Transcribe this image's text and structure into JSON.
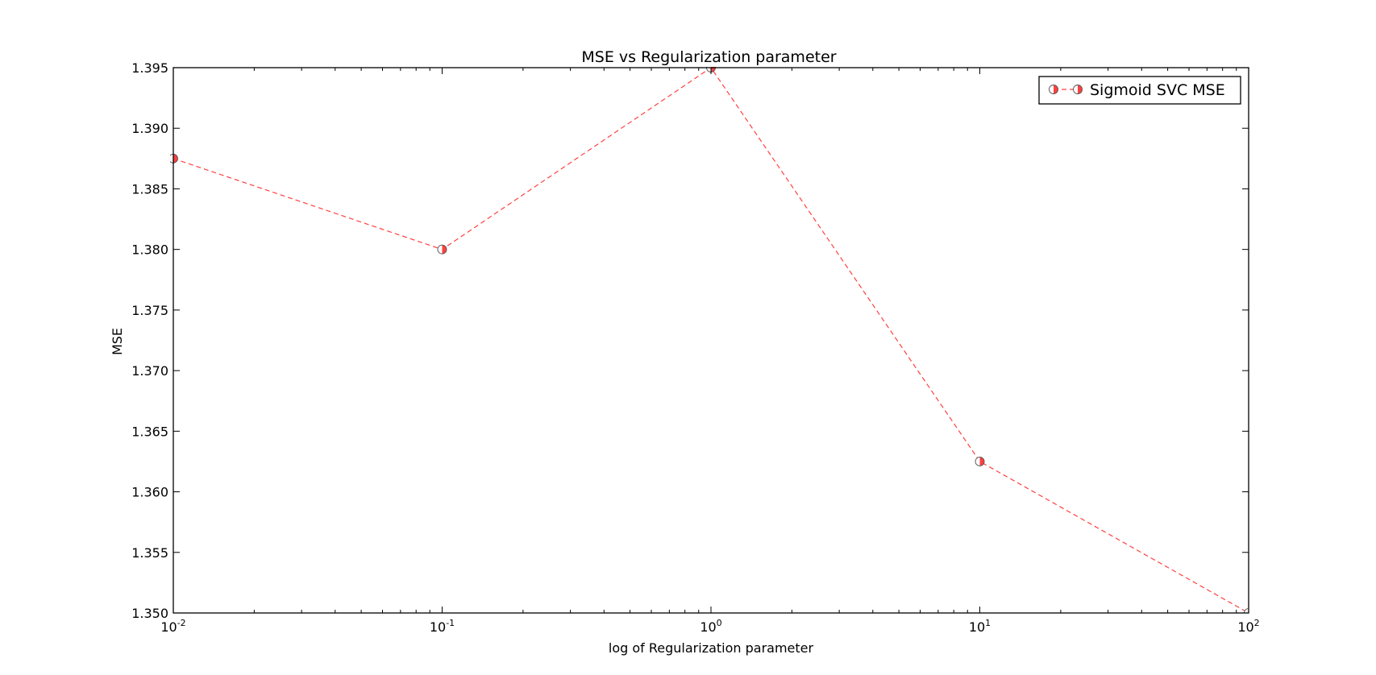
{
  "chart_data": {
    "type": "line",
    "title": "MSE vs Regularization parameter",
    "xlabel": "log of Regularization parameter",
    "ylabel": "MSE",
    "xscale": "log",
    "xlim": [
      0.01,
      100
    ],
    "ylim": [
      1.35,
      1.395
    ],
    "x_ticks": [
      {
        "value": 0.01,
        "base": "10",
        "exp": "-2"
      },
      {
        "value": 0.1,
        "base": "10",
        "exp": "-1"
      },
      {
        "value": 1,
        "base": "10",
        "exp": "0"
      },
      {
        "value": 10,
        "base": "10",
        "exp": "1"
      },
      {
        "value": 100,
        "base": "10",
        "exp": "2"
      }
    ],
    "y_ticks": [
      {
        "value": 1.35,
        "label": "1.350"
      },
      {
        "value": 1.355,
        "label": "1.355"
      },
      {
        "value": 1.36,
        "label": "1.360"
      },
      {
        "value": 1.365,
        "label": "1.365"
      },
      {
        "value": 1.37,
        "label": "1.370"
      },
      {
        "value": 1.375,
        "label": "1.375"
      },
      {
        "value": 1.38,
        "label": "1.380"
      },
      {
        "value": 1.385,
        "label": "1.385"
      },
      {
        "value": 1.39,
        "label": "1.390"
      },
      {
        "value": 1.395,
        "label": "1.395"
      }
    ],
    "series": [
      {
        "name": "Sigmoid SVC MSE",
        "x": [
          0.01,
          0.1,
          1,
          10,
          100
        ],
        "y": [
          1.3875,
          1.38,
          1.395,
          1.3625,
          1.35
        ],
        "color": "#ff0000",
        "linestyle": "dashed",
        "marker": "half-filled circle"
      }
    ],
    "legend": "upper right",
    "grid": false
  }
}
